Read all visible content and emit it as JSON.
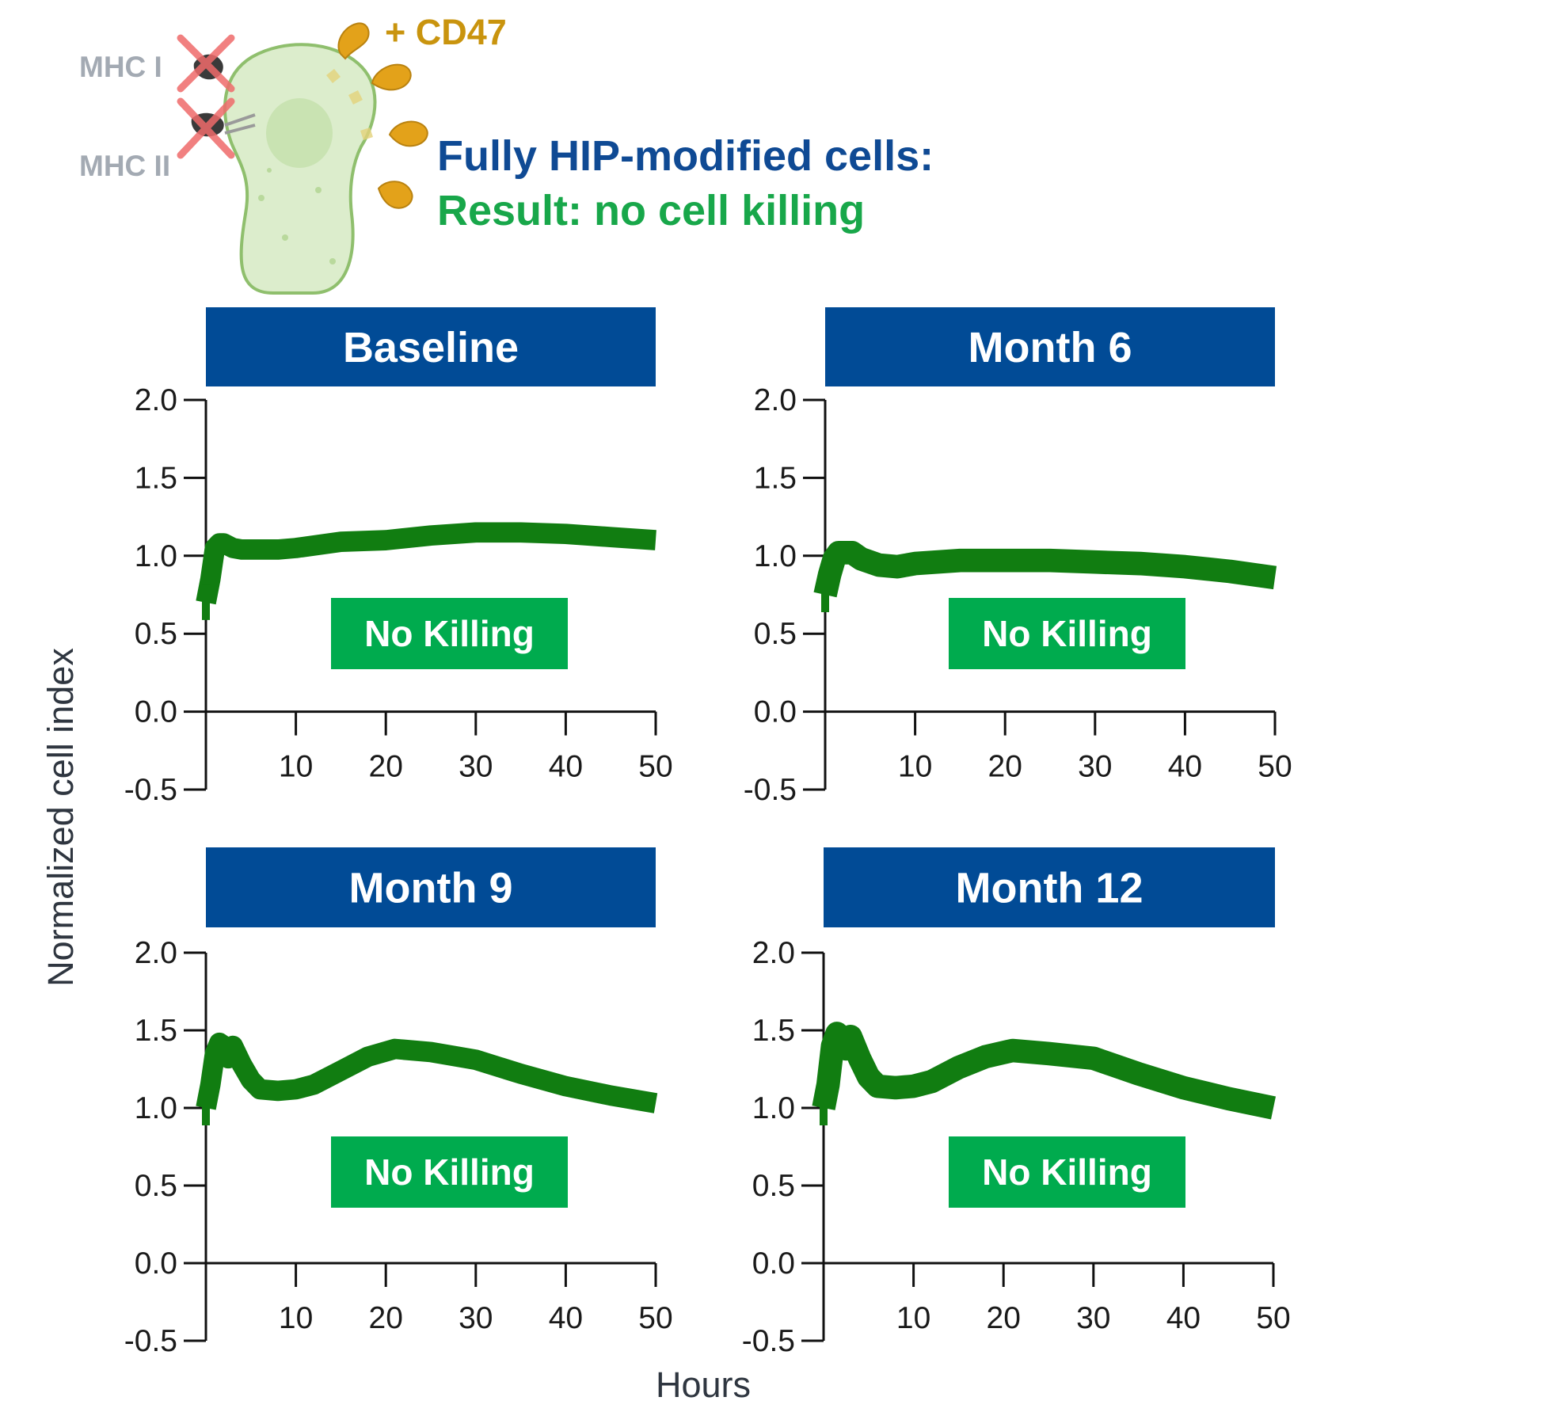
{
  "header": {
    "line1": "Fully HIP-modified cells:",
    "line2": "Result: no cell killing",
    "cd47_label": "+ CD47",
    "mhc1_label": "MHC I",
    "mhc2_label": "MHC II",
    "colors": {
      "line1": "#0f4a94",
      "line2": "#18a74a",
      "cd47": "#c9940e",
      "cell_fill": "#dcedcc",
      "cell_stroke": "#8fbf6d",
      "receptor": "#e3a21a",
      "cross": "#ef6b6b"
    }
  },
  "shared_axes": {
    "ylabel": "Normalized cell index",
    "xlabel": "Hours",
    "yticks": [
      "2.0",
      "1.5",
      "1.0",
      "0.5",
      "0.0",
      "-0.5"
    ],
    "xticks": [
      "10",
      "20",
      "30",
      "40",
      "50"
    ]
  },
  "colors": {
    "title_band": "#014b96",
    "badge": "#00ab4e",
    "series": "#117d11"
  },
  "chart_data": [
    {
      "type": "line",
      "title": "Baseline",
      "annotation": "No Killing",
      "xlabel": "Hours",
      "ylabel": "Normalized cell index",
      "xlim": [
        0,
        50
      ],
      "ylim": [
        -0.5,
        2.0
      ],
      "series": [
        {
          "name": "Normalized cell index",
          "x": [
            0,
            0.5,
            1,
            1.5,
            2,
            3,
            4,
            6,
            8,
            10,
            15,
            20,
            25,
            30,
            35,
            40,
            45,
            50
          ],
          "y": [
            0.7,
            0.85,
            1.05,
            1.08,
            1.08,
            1.05,
            1.04,
            1.04,
            1.04,
            1.05,
            1.09,
            1.1,
            1.13,
            1.15,
            1.15,
            1.14,
            1.12,
            1.1
          ],
          "band": 0.04
        }
      ]
    },
    {
      "type": "line",
      "title": "Month 6",
      "annotation": "No Killing",
      "xlabel": "Hours",
      "ylabel": "Normalized cell index",
      "xlim": [
        0,
        50
      ],
      "ylim": [
        -0.5,
        2.0
      ],
      "series": [
        {
          "name": "Normalized cell index",
          "x": [
            0,
            0.5,
            1,
            1.5,
            2,
            3,
            4,
            6,
            8,
            10,
            15,
            20,
            25,
            30,
            35,
            40,
            45,
            50
          ],
          "y": [
            0.75,
            0.88,
            0.98,
            1.02,
            1.02,
            1.02,
            0.98,
            0.94,
            0.93,
            0.95,
            0.97,
            0.97,
            0.97,
            0.96,
            0.95,
            0.93,
            0.9,
            0.86
          ],
          "band": 0.05
        }
      ]
    },
    {
      "type": "line",
      "title": "Month 9",
      "annotation": "No Killing",
      "xlabel": "Hours",
      "ylabel": "Normalized cell index",
      "xlim": [
        0,
        50
      ],
      "ylim": [
        -0.5,
        2.0
      ],
      "series": [
        {
          "name": "Normalized cell index",
          "x": [
            0,
            0.5,
            1,
            1.5,
            2,
            2.5,
            3,
            4,
            5,
            6,
            8,
            10,
            12,
            15,
            18,
            21,
            25,
            30,
            35,
            40,
            45,
            50
          ],
          "y": [
            1.0,
            1.15,
            1.35,
            1.42,
            1.4,
            1.32,
            1.4,
            1.28,
            1.18,
            1.12,
            1.11,
            1.12,
            1.15,
            1.24,
            1.33,
            1.38,
            1.36,
            1.31,
            1.22,
            1.14,
            1.08,
            1.03
          ],
          "band": 0.04
        }
      ]
    },
    {
      "type": "line",
      "title": "Month 12",
      "annotation": "No Killing",
      "xlabel": "Hours",
      "ylabel": "Normalized cell index",
      "xlim": [
        0,
        50
      ],
      "ylim": [
        -0.5,
        2.0
      ],
      "series": [
        {
          "name": "Normalized cell index",
          "x": [
            0,
            0.5,
            1,
            1.5,
            2,
            2.5,
            3,
            4,
            5,
            6,
            8,
            10,
            12,
            15,
            18,
            21,
            25,
            30,
            35,
            40,
            45,
            50
          ],
          "y": [
            1.0,
            1.15,
            1.4,
            1.48,
            1.45,
            1.38,
            1.46,
            1.32,
            1.2,
            1.14,
            1.13,
            1.14,
            1.17,
            1.26,
            1.33,
            1.37,
            1.35,
            1.32,
            1.22,
            1.13,
            1.06,
            1.0
          ],
          "band": 0.05
        }
      ]
    }
  ]
}
